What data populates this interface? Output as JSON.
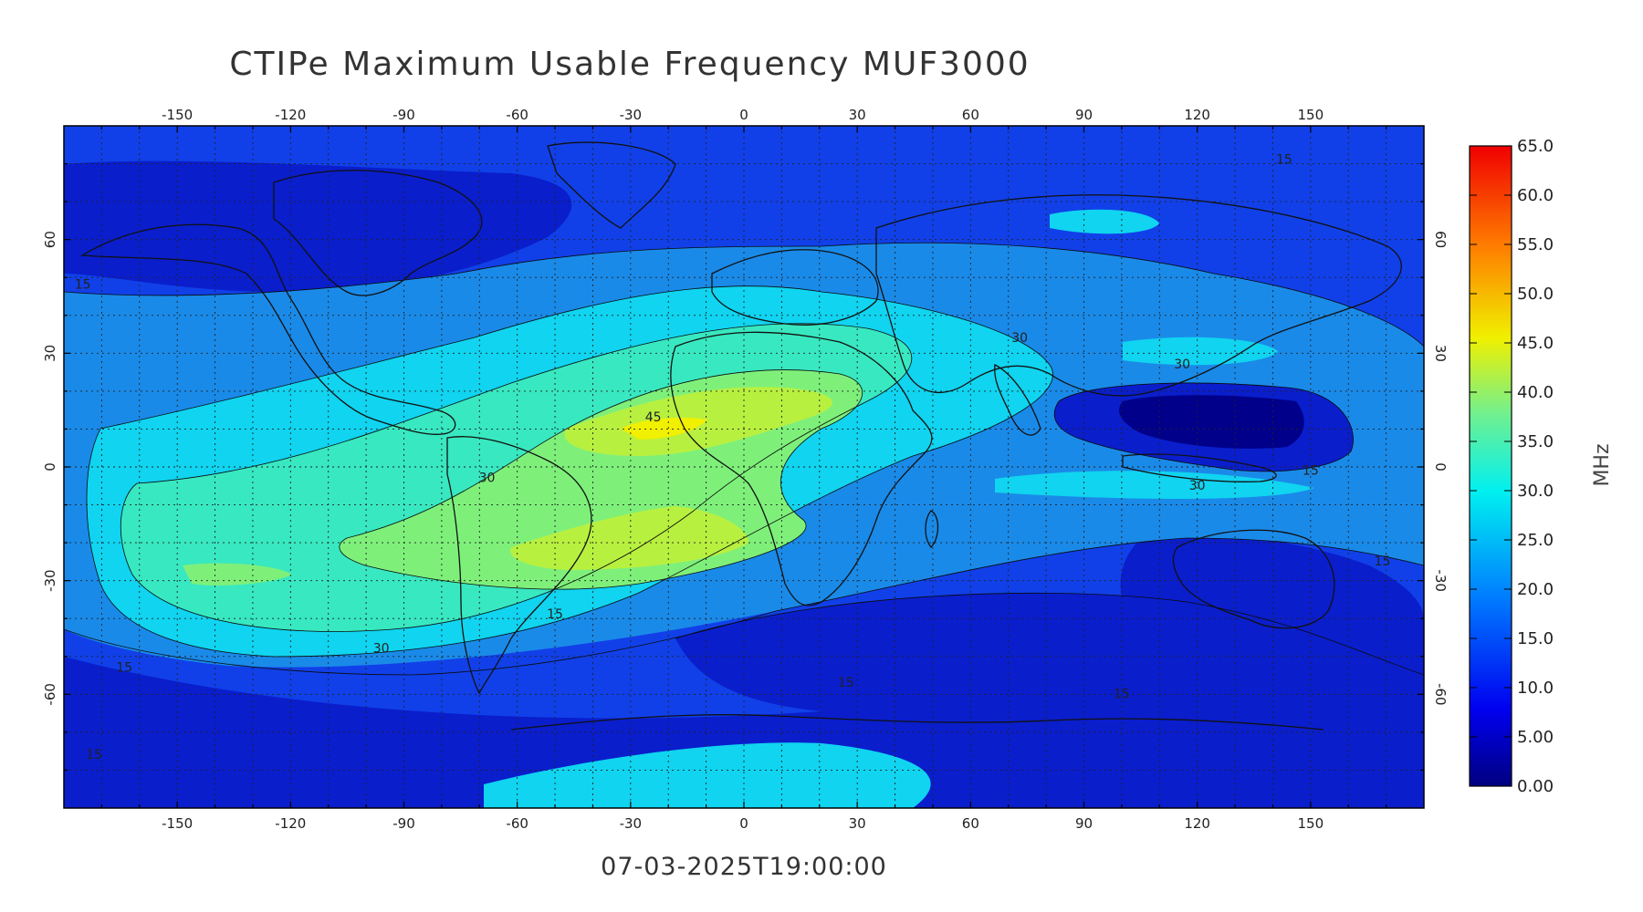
{
  "title": "CTIPe Maximum Usable Frequency MUF3000",
  "timestamp": "07-03-2025T19:00:00",
  "map": {
    "lon_range": [
      -180,
      180
    ],
    "lat_range": [
      -90,
      90
    ],
    "lon_ticks": [
      "-150",
      "-120",
      "-90",
      "-60",
      "-30",
      "0",
      "30",
      "60",
      "90",
      "120",
      "150"
    ],
    "lat_ticks_left": [
      "60",
      "30",
      "0",
      "-30",
      "-60"
    ],
    "lat_ticks_right": [
      "60",
      "30",
      "0",
      "-30",
      "-60"
    ],
    "grid": "dotted",
    "contour_labels": [
      {
        "text": "45",
        "lon": -24,
        "lat": 12
      },
      {
        "text": "30",
        "lon": -68,
        "lat": -4
      },
      {
        "text": "30",
        "lon": 73,
        "lat": 33
      },
      {
        "text": "30",
        "lon": 116,
        "lat": 26
      },
      {
        "text": "30",
        "lon": 120,
        "lat": -6
      },
      {
        "text": "30",
        "lon": -96,
        "lat": -49
      },
      {
        "text": "15",
        "lon": -175,
        "lat": 47
      },
      {
        "text": "15",
        "lon": -164,
        "lat": -54
      },
      {
        "text": "15",
        "lon": -172,
        "lat": -77
      },
      {
        "text": "15",
        "lon": 143,
        "lat": 80
      },
      {
        "text": "15",
        "lon": 150,
        "lat": -2
      },
      {
        "text": "15",
        "lon": 169,
        "lat": -26
      },
      {
        "text": "15",
        "lon": -50,
        "lat": -40
      },
      {
        "text": "15",
        "lon": 27,
        "lat": -58
      },
      {
        "text": "15",
        "lon": 100,
        "lat": -61
      }
    ]
  },
  "colorbar": {
    "unit": "MHz",
    "min": 0,
    "max": 65,
    "labels": [
      "65.0",
      "60.0",
      "55.0",
      "50.0",
      "45.0",
      "40.0",
      "35.0",
      "30.0",
      "25.0",
      "20.0",
      "15.0",
      "10.0",
      "5.00",
      "0.00"
    ]
  },
  "colors": {
    "deep_navy": "#00008a",
    "dark_blue": "#0a1ecc",
    "blue": "#1140e8",
    "mid_blue": "#1a8ae8",
    "cyan": "#10d4f0",
    "aqua_green": "#38e8c0",
    "light_green": "#7ef07a",
    "yellow_green": "#b8f040",
    "yellow": "#f0f000"
  }
}
